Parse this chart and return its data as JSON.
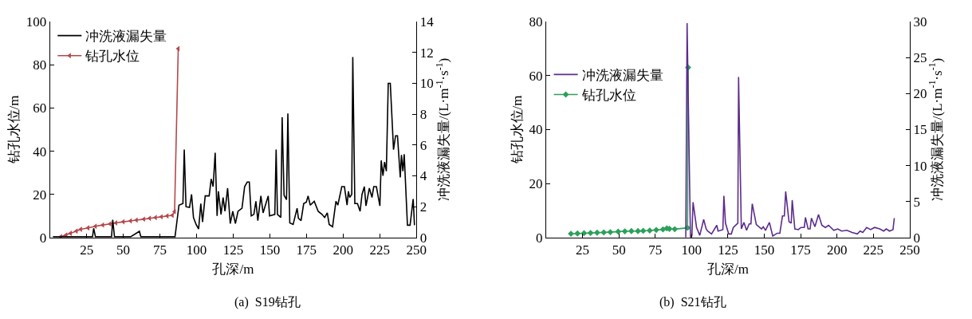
{
  "chart_data": [
    {
      "type": "line",
      "title": "(a)  S19钻孔",
      "xlabel": "孔深/m",
      "ylabel": "钻孔水位/m",
      "y2label": "冲洗液漏失量/(L·m$^{-1}$·s$^{-1}$)",
      "xlim": [
        0,
        250
      ],
      "xticks": [
        25,
        50,
        75,
        100,
        125,
        150,
        175,
        200,
        225,
        250
      ],
      "ylim": [
        0,
        100
      ],
      "yticks": [
        0,
        20,
        40,
        60,
        80,
        100
      ],
      "y2lim": [
        0,
        14
      ],
      "y2ticks": [
        0,
        2,
        4,
        6,
        8,
        10,
        12,
        14
      ],
      "legend": "top left",
      "series": [
        {
          "name": "冲洗液漏失量",
          "color": "#000000",
          "axis": "y2",
          "marker": "none",
          "x": [
            2,
            10,
            20,
            29,
            29.8,
            31,
            42,
            42.8,
            44,
            55,
            61,
            62,
            70,
            80,
            85.3,
            88,
            90.7,
            91.6,
            92.8,
            95.2,
            96.6,
            97.9,
            99.7,
            101.4,
            102.9,
            104.1,
            105.9,
            108.6,
            110,
            111.3,
            112.7,
            114,
            114.9,
            116.7,
            118.1,
            119.4,
            121.2,
            123,
            124.7,
            126.5,
            128.3,
            131,
            132.8,
            134.6,
            136,
            137.3,
            139.1,
            140.5,
            141.8,
            143.9,
            145.4,
            148.9,
            149.8,
            153.4,
            154.3,
            155.2,
            157.5,
            158.4,
            159.7,
            161.4,
            162.3,
            163.6,
            165.9,
            168.6,
            169.5,
            171.3,
            173.1,
            174.9,
            176.1,
            177.6,
            180.3,
            183,
            185.6,
            187.4,
            189.2,
            190.5,
            192.8,
            195.1,
            196.4,
            199.1,
            200.9,
            202.7,
            203.6,
            204.5,
            205.9,
            206.6,
            208,
            209.8,
            211.6,
            212.9,
            214.5,
            215.6,
            217.9,
            219.7,
            220.9,
            222.7,
            225.1,
            226,
            227.2,
            228.3,
            229.5,
            230.8,
            232.2,
            234.4,
            235.8,
            237.1,
            239,
            239.8,
            240.8,
            241.7,
            243.9,
            245.7,
            247.8,
            248.7
          ],
          "values": [
            0.05,
            0.05,
            0.05,
            0.05,
            0.6,
            0.05,
            0.05,
            1.15,
            0.05,
            0.05,
            0.4,
            0.05,
            0.05,
            0.05,
            0.05,
            2.1,
            2.2,
            5.7,
            2.0,
            1.95,
            2.8,
            1.3,
            0.85,
            0.55,
            2.2,
            1.0,
            2.7,
            2.7,
            3.8,
            3.3,
            5.5,
            1.4,
            3.0,
            1.5,
            2.6,
            1.7,
            3.2,
            0.9,
            1.7,
            0.9,
            1.7,
            1.9,
            3.3,
            3.6,
            3.6,
            1.4,
            1.5,
            2.35,
            1.1,
            2.7,
            1.6,
            2.7,
            1.4,
            1.5,
            5.7,
            1.5,
            1.3,
            7.8,
            2.75,
            2.45,
            8.05,
            0.95,
            0.85,
            1.9,
            1.25,
            1.1,
            2.2,
            2.3,
            2.7,
            2.1,
            2.35,
            1.7,
            1.5,
            1.3,
            1.6,
            0.85,
            0.7,
            2.35,
            2.1,
            3.3,
            3.3,
            2.1,
            3.0,
            2.6,
            2.8,
            11.7,
            2.2,
            2.2,
            1.7,
            2.8,
            3.3,
            2.05,
            3.2,
            2.6,
            3.3,
            3.3,
            2.05,
            5.0,
            4.0,
            4.9,
            4.3,
            10,
            10,
            5.7,
            6.6,
            6.6,
            3.9,
            5.35,
            4.3,
            5.4,
            0.8,
            0.8,
            2.5,
            0.8
          ]
        },
        {
          "name": "钻孔水位",
          "color": "#b5474b",
          "axis": "y",
          "marker": "triangle",
          "x": [
            7.4,
            11,
            14,
            18,
            21,
            26,
            31,
            36,
            41,
            45,
            50,
            55,
            59,
            64,
            68,
            72,
            76,
            80,
            83.5,
            85,
            87.5
          ],
          "values": [
            0.4,
            1.2,
            2,
            3,
            3.8,
            4.5,
            5.2,
            5.8,
            6.3,
            6.8,
            7.3,
            7.7,
            8.1,
            8.5,
            8.9,
            9.3,
            9.6,
            10,
            10.3,
            12,
            87.5
          ]
        }
      ]
    },
    {
      "type": "line",
      "title": "(b)  S21钻孔",
      "xlabel": "孔深/m",
      "ylabel": "钻孔水位/m",
      "y2label": "冲洗液漏失量/(L·m$^{-1}$·s$^{-1}$)",
      "xlim": [
        0,
        250
      ],
      "xticks": [
        25,
        50,
        75,
        100,
        125,
        150,
        175,
        200,
        225,
        250
      ],
      "ylim": [
        0,
        80
      ],
      "yticks": [
        0,
        20,
        40,
        60,
        80
      ],
      "y2lim": [
        0,
        30
      ],
      "y2ticks": [
        0,
        5,
        10,
        15,
        20,
        25,
        30
      ],
      "legend": "left",
      "series": [
        {
          "name": "冲洗液漏失量",
          "color": "#5b2c8c",
          "axis": "y2",
          "marker": "none",
          "x": [
            96,
            96.9,
            99.2,
            100.2,
            101,
            103.4,
            105.6,
            108.3,
            110,
            111,
            113.7,
            117.3,
            118.2,
            121.5,
            122.2,
            123.3,
            125.5,
            127.3,
            128.7,
            131.8,
            132.3,
            134.2,
            136,
            137.8,
            139.6,
            140.8,
            141.7,
            144.5,
            148.1,
            149.3,
            150.8,
            153.5,
            155.8,
            158.9,
            160.7,
            162.5,
            163.8,
            164.7,
            167,
            168.5,
            169.2,
            171,
            173.4,
            175.2,
            177.5,
            178.3,
            180.1,
            181.5,
            182.4,
            184.8,
            187.3,
            189.6,
            192,
            194.2,
            197.8,
            200.5,
            203.2,
            206.8,
            210.4,
            214,
            215.9,
            217.7,
            220.4,
            223.1,
            225.8,
            229.4,
            232.1,
            233.9,
            236.1,
            238.5,
            239.4
          ],
          "values": [
            0,
            29.8,
            0,
            0.3,
            4.9,
            1.4,
            0.3,
            2.5,
            1.2,
            0.9,
            0.5,
            1.7,
            0.9,
            1.1,
            5.8,
            2.0,
            0.5,
            0.5,
            1.4,
            2.0,
            22.3,
            1.2,
            2.1,
            1.0,
            1.9,
            1.9,
            4.7,
            1.8,
            1.2,
            1.5,
            1.0,
            2.1,
            0.2,
            0.6,
            0.6,
            3.0,
            3.0,
            6.4,
            2.2,
            2.0,
            5.2,
            1.2,
            1.1,
            1.4,
            1.4,
            2.8,
            1.2,
            1.2,
            2.7,
            1.5,
            3.2,
            1.7,
            1.4,
            1.7,
            1.0,
            1.2,
            0.9,
            1.0,
            0.7,
            0.5,
            0.9,
            0.7,
            1.4,
            1.1,
            1.4,
            1.2,
            0.9,
            1.2,
            0.9,
            1.1,
            2.7
          ]
        },
        {
          "name": "钻孔水位",
          "color": "#2ca05a",
          "axis": "y",
          "marker": "diamond",
          "x": [
            17,
            21.5,
            26,
            30.5,
            35,
            39.6,
            44.1,
            49.5,
            54.1,
            58.6,
            63.1,
            66.7,
            71.2,
            75.7,
            80.3,
            83,
            84.8,
            88.4,
            97.2,
            97.6
          ],
          "values": [
            1.4,
            1.5,
            1.6,
            1.7,
            1.8,
            1.9,
            2.0,
            2.2,
            2.3,
            2.4,
            2.4,
            2.5,
            2.6,
            2.8,
            3.0,
            3.4,
            3.2,
            3.1,
            3.6,
            63
          ]
        }
      ]
    }
  ]
}
